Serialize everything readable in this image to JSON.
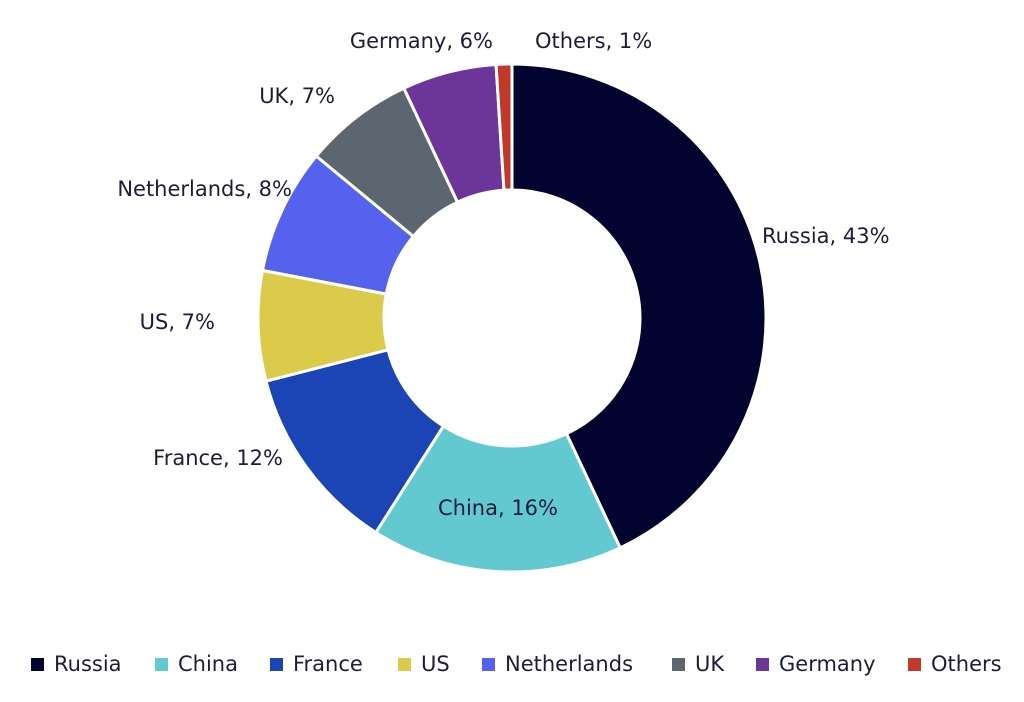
{
  "chart_data": {
    "type": "donut",
    "categories": [
      "Russia",
      "China",
      "France",
      "US",
      "Netherlands",
      "UK",
      "Germany",
      "Others"
    ],
    "values": [
      43,
      16,
      12,
      7,
      8,
      7,
      6,
      1
    ],
    "value_labels": [
      "Russia, 43%",
      "China, 16%",
      "France, 12%",
      "US, 7%",
      "Netherlands, 8%",
      "UK, 7%",
      "Germany, 6%",
      "Others, 1%"
    ],
    "colors": [
      "#03032f",
      "#63c9d0",
      "#1b44b5",
      "#dccb4b",
      "#5462ee",
      "#5c6670",
      "#6c3599",
      "#c0392b"
    ],
    "legend": "bottom"
  }
}
